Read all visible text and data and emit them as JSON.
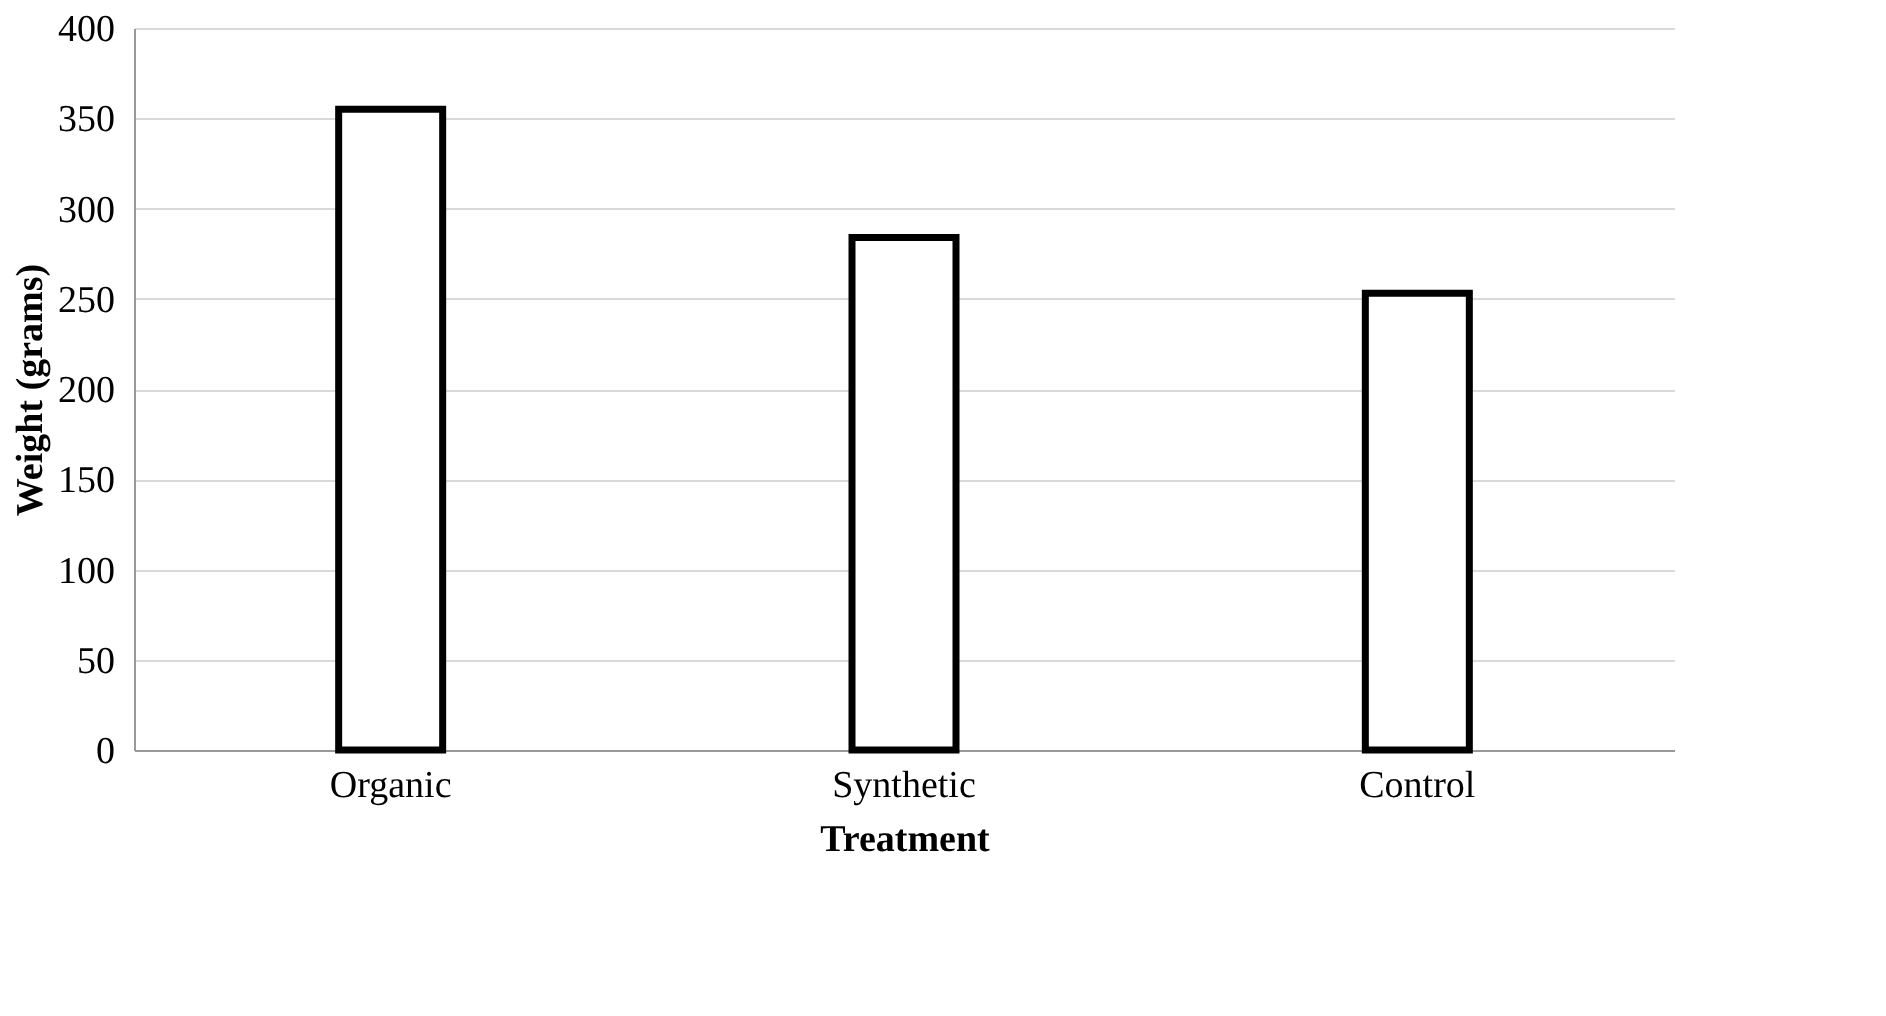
{
  "chart_data": {
    "type": "bar",
    "xlabel": "Treatment",
    "ylabel": "Weight (grams)",
    "categories": [
      "Organic",
      "Synthetic",
      "Control"
    ],
    "values": [
      355,
      284,
      253
    ],
    "color": "#ffffff",
    "ylim": [
      0,
      400
    ],
    "yticks": [
      0,
      50,
      100,
      150,
      200,
      250,
      300,
      350,
      400
    ],
    "grid": "y"
  }
}
